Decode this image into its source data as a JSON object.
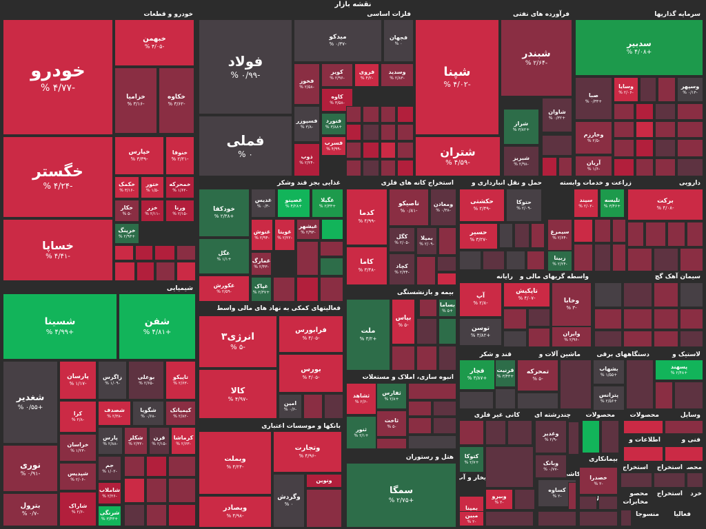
{
  "title": "نقشه بازار",
  "colors": {
    "R": "#cb2a45",
    "r": "#b21f3c",
    "m": "#8a2e43",
    "d": "#5e3341",
    "g": "#474045",
    "l": "#2d6d49",
    "G": "#1d9a4c",
    "L": "#12b45a",
    "bg": "#2c2c2c"
  },
  "chart_data": {
    "type": "treemap",
    "sectors": [
      "خودرو و قطعات",
      "فلزات اساسی",
      "فرآورده های نفتی",
      "سرمایه گذاریها",
      "شیمیایی",
      "غذایی بجز قند وشکر",
      "استخراج کانه های فلزی",
      "حمل و نقل انبارداری و",
      "زراعت و خدمات وابسته",
      "دارویی",
      "فعالیتهای کمکی به نهاد های مالی واسط",
      "رایانه",
      "واسطه گریهای مالی و پولی",
      "سیمان آهک گچ",
      "بیمه و بازنشستگی",
      "قند و شکر",
      "ماشین آلات و",
      "دستگاههای برقی",
      "لاستیک و",
      "انبوه سازی، املاک و مستغلات",
      "کانی غیر فلزی",
      "چندرشته ای",
      "محصولات",
      "محصولات",
      "وسایل",
      "بانکها و موسسات اعتباری",
      "هتل و رستوران",
      "عرضه برق،گاز،بخار و آب",
      "کاشی و سرامیک",
      "بیمانکاری",
      "محصولات",
      "فنی و",
      "اطلاعات و",
      "استخراج",
      "استخراج",
      "محصو",
      "خرد",
      "استخراج",
      "محصو",
      "مخابرات",
      "فعالیا",
      "منسوجا"
    ],
    "symbols": [
      {
        "name": "خودرو",
        "change": "-۴/۷۷ %"
      },
      {
        "name": "خبهمن",
        "change": "-۴/۰۵ %"
      },
      {
        "name": "خزامیا",
        "change": "-۳/۱۶ %"
      },
      {
        "name": "خکاوه",
        "change": "-۳/۶۲ %"
      },
      {
        "name": "خپارس",
        "change": "-۳/۳۹ %"
      },
      {
        "name": "خنوفا",
        "change": "-۲/۲۱ %"
      },
      {
        "name": "خگستر",
        "change": "-۴/۲۴ %"
      },
      {
        "name": "خکمک",
        "change": "-۳/۱۶ %"
      },
      {
        "name": "ختور",
        "change": "-۱/۵ %"
      },
      {
        "name": "خمحرکه",
        "change": "-۱/۶۲ %"
      },
      {
        "name": "خکار",
        "change": "-۵ %"
      },
      {
        "name": "خزر",
        "change": "-۲/۱۱ %"
      },
      {
        "name": "ورنا",
        "change": "-۲/۱۵ %"
      },
      {
        "name": "خساپا",
        "change": "-۴/۴۱ %"
      },
      {
        "name": "خرینگ",
        "change": "+۲/۹۳ %"
      },
      {
        "name": "فولاد",
        "change": "-۰/۹۹ %"
      },
      {
        "name": "فملی",
        "change": "۰ %"
      },
      {
        "name": "میدکو",
        "change": "-۰/۳۷ %"
      },
      {
        "name": "فجهان",
        "change": "۰ %"
      },
      {
        "name": "فخوز",
        "change": "-۲/۵۸ %"
      },
      {
        "name": "کویر",
        "change": "-۲/۹۶ %"
      },
      {
        "name": "فروی",
        "change": "-۴/۲ %"
      },
      {
        "name": "وسدید",
        "change": "-۲/۸۳ %"
      },
      {
        "name": "کاوه",
        "change": "-۳/۵۸ %"
      },
      {
        "name": "فسپوزر",
        "change": "-۳/۸ %"
      },
      {
        "name": "فنورد",
        "change": "+۳/۸۸ %"
      },
      {
        "name": "فسرب",
        "change": "-۴/۹۹ %"
      },
      {
        "name": "ذوب",
        "change": "-۲/۲۴ %"
      },
      {
        "name": "شپنا",
        "change": "-۴/۰۲ %"
      },
      {
        "name": "شبندر",
        "change": "-۲/۶۴ %"
      },
      {
        "name": "شاوان",
        "change": "+۰/۳۲ %"
      },
      {
        "name": "شراز",
        "change": "+۳/۸۲ %"
      },
      {
        "name": "شتران",
        "change": "-۴/۵۹ %"
      },
      {
        "name": "شبریز",
        "change": "-۲/۹۸ %"
      },
      {
        "name": "سدبیر",
        "change": "+۴/۰۸ %"
      },
      {
        "name": "صبا",
        "change": "+۰/۳۳ %"
      },
      {
        "name": "وسایا",
        "change": "-۲/۰۶ %"
      },
      {
        "name": "وسپهر",
        "change": "-۰/۱۳ %"
      },
      {
        "name": "وخارزم",
        "change": "-۲/۵ %"
      },
      {
        "name": "آریان",
        "change": "-۱/۶ %"
      },
      {
        "name": "شسینا",
        "change": "+۴/۹۹ %"
      },
      {
        "name": "شفن",
        "change": "+۴/۸۱ %"
      },
      {
        "name": "شغدیر",
        "change": "+۰/۵۵ %"
      },
      {
        "name": "پارسان",
        "change": "-۱/۱۷ %"
      },
      {
        "name": "زاگرس",
        "change": "-۱/۰۹ %"
      },
      {
        "name": "بوعلی",
        "change": "-۲/۶۵ %"
      },
      {
        "name": "تاپیکو",
        "change": "-۲/۶۳ %"
      },
      {
        "name": "کرا",
        "change": "-۲/۸ %"
      },
      {
        "name": "شصدف",
        "change": "-۲/۳۸ %"
      },
      {
        "name": "شگویا",
        "change": "-۰/۶۸ %"
      },
      {
        "name": "کیمیاتک",
        "change": "-۲/۸۲ %"
      },
      {
        "name": "خراسان",
        "change": "-۱/۲۳ %"
      },
      {
        "name": "پارس",
        "change": "-۲/۸۸ %"
      },
      {
        "name": "شکلر",
        "change": "-۲/۳۲ %"
      },
      {
        "name": "قرن",
        "change": "-۲/۱۵ %"
      },
      {
        "name": "کرماشا",
        "change": "-۲/۶۳ %"
      },
      {
        "name": "نوری",
        "change": "-۰/۹۱ %"
      },
      {
        "name": "جم",
        "change": "-۱/۰۲ %"
      },
      {
        "name": "شپدیس",
        "change": "-۲/۰۶ %"
      },
      {
        "name": "شاملاب",
        "change": "-۲/۲۶ %"
      },
      {
        "name": "بترول",
        "change": "-۰/۷ %"
      },
      {
        "name": "شاراک",
        "change": "-۲/۶ %"
      },
      {
        "name": "شرنگی",
        "change": "+۳/۴۳ %"
      },
      {
        "name": "غدیس",
        "change": "-۰/۳ %"
      },
      {
        "name": "غصینو",
        "change": "+۴/۲۸ %"
      },
      {
        "name": "غگیلا",
        "change": "+۲/۳۳ %"
      },
      {
        "name": "خودکفا",
        "change": "+۲/۳۸ %"
      },
      {
        "name": "غنوش",
        "change": "-۲/۹۴ %"
      },
      {
        "name": "غویتا",
        "change": "-۲/۲۲ %"
      },
      {
        "name": "غیشهر",
        "change": "-۲/۹۳ %"
      },
      {
        "name": "غگل",
        "change": "+۱/۱ %"
      },
      {
        "name": "غمارگ",
        "change": "-۲/۴۳ %"
      },
      {
        "name": "غکورش",
        "change": "-۲/۵۹ %"
      },
      {
        "name": "غپاک",
        "change": "+۲/۳۷ %"
      },
      {
        "name": "کدما",
        "change": "-۴/۹۹ %"
      },
      {
        "name": "تاصیکو",
        "change": "-۰/۸۱ %"
      },
      {
        "name": "ومعادن",
        "change": "-۰/۳۸ %"
      },
      {
        "name": "کگل",
        "change": "-۲/۰۵ %"
      },
      {
        "name": "بمیلا",
        "change": "-۲/۰۹ %"
      },
      {
        "name": "کاما",
        "change": "-۳/۴۸ %"
      },
      {
        "name": "کچاد",
        "change": "-۲/۳۴ %"
      },
      {
        "name": "حکشتی",
        "change": "-۲/۴۹ %"
      },
      {
        "name": "حتوکا",
        "change": "-۲/۰۹ %"
      },
      {
        "name": "حسیر",
        "change": "-۳/۲۷ %"
      },
      {
        "name": "سیمرغ",
        "change": "-۲/۶۴ %"
      },
      {
        "name": "زبینا",
        "change": "-۲/۲۴ %"
      },
      {
        "name": "سیند",
        "change": "-۲/۰۲ %"
      },
      {
        "name": "تلیسه",
        "change": "+۳/۴۶ %"
      },
      {
        "name": "برکت",
        "change": "-۴/۰۸ %"
      },
      {
        "name": "انرژی۳",
        "change": "-۵ %"
      },
      {
        "name": "فرابورس",
        "change": "-۴/۰۵ %"
      },
      {
        "name": "بورس",
        "change": "-۴/۰۵ %"
      },
      {
        "name": "کالا",
        "change": "-۴/۹۷ %"
      },
      {
        "name": "امین",
        "change": "-۰/۶ %"
      },
      {
        "name": "آپ",
        "change": "-۲/۸ %"
      },
      {
        "name": "تاپکیش",
        "change": "-۴/۰۷ %"
      },
      {
        "name": "وخابا",
        "change": "-۳ %"
      },
      {
        "name": "توسن",
        "change": "+۳/۸۲ %"
      },
      {
        "name": "وایران",
        "change": "-۲/۹۶ %"
      },
      {
        "name": "بساما",
        "change": "+۵ %"
      },
      {
        "name": "ملت",
        "change": "+۳/۲ %"
      },
      {
        "name": "بپاس",
        "change": "-۵ %"
      },
      {
        "name": "قرنیت",
        "change": "+۳/۴۳ %"
      },
      {
        "name": "قچار",
        "change": "+۳/۸۷ %"
      },
      {
        "name": "تمحرکه",
        "change": "-۵ %"
      },
      {
        "name": "بشهاب",
        "change": "+۱/۵۵ %"
      },
      {
        "name": "پترانس",
        "change": "+۲/۵۶ %"
      },
      {
        "name": "پسهند",
        "change": "+۲/۴۸ %"
      },
      {
        "name": "ثشاهد",
        "change": "-۲/۶ %"
      },
      {
        "name": "ثفارس",
        "change": "+۲/۸ %"
      },
      {
        "name": "ثاخت",
        "change": "-۵ %"
      },
      {
        "name": "ثنور",
        "change": "+۲/۱ %"
      },
      {
        "name": "وغدیر",
        "change": "-۲/۹ %"
      },
      {
        "name": "کتوکا",
        "change": "+۲/۷ %"
      },
      {
        "name": "وبانک",
        "change": "-۰/۷۷ %"
      },
      {
        "name": "وبملت",
        "change": "-۴/۲۴ %"
      },
      {
        "name": "وتجارت",
        "change": "-۴/۹۶ %"
      },
      {
        "name": "وبصادر",
        "change": "-۴/۹۸ %"
      },
      {
        "name": "وگردش",
        "change": "۰ %"
      },
      {
        "name": "ونوین",
        "change": "-۲/۸ %"
      },
      {
        "name": "سمگا",
        "change": "+۲/۷۵ %"
      },
      {
        "name": "بمپنا",
        "change": "-۲/۴۸ %"
      },
      {
        "name": "خصدرا",
        "change": "-۲ %"
      },
      {
        "name": "کساوه",
        "change": "-۲ %"
      },
      {
        "name": "وبیرو",
        "change": "-۲ %"
      },
      {
        "name": "مبین",
        "change": "-۲ %"
      }
    ]
  }
}
